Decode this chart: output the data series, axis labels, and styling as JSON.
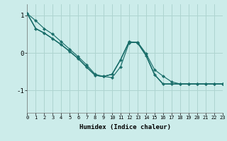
{
  "xlabel": "Humidex (Indice chaleur)",
  "xlim": [
    0,
    23
  ],
  "ylim": [
    -1.6,
    1.3
  ],
  "yticks": [
    -1,
    0,
    1
  ],
  "xticks": [
    0,
    1,
    2,
    3,
    4,
    5,
    6,
    7,
    8,
    9,
    10,
    11,
    12,
    13,
    14,
    15,
    16,
    17,
    18,
    19,
    20,
    21,
    22,
    23
  ],
  "background_color": "#ccecea",
  "grid_color": "#aed4d0",
  "line_color": "#1a6e6a",
  "marker": "D",
  "marker_size": 2.2,
  "line_width": 0.85,
  "series": [
    {
      "y": [
        1.05,
        0.86,
        0.65,
        0.5,
        0.3,
        0.1,
        -0.1,
        -0.32,
        -0.57,
        -0.63,
        -0.66,
        -0.37,
        0.27,
        0.29,
        -0.02,
        -0.45,
        -0.62,
        -0.77,
        -0.83,
        -0.83,
        -0.83,
        -0.83,
        -0.83,
        -0.83
      ],
      "markers": true
    },
    {
      "y": [
        1.05,
        0.65,
        0.53,
        0.38,
        0.22,
        0.04,
        -0.15,
        -0.38,
        -0.6,
        -0.63,
        -0.57,
        -0.18,
        0.3,
        0.27,
        -0.07,
        -0.58,
        -0.83,
        -0.83,
        -0.83,
        -0.83,
        -0.83,
        -0.83,
        -0.83,
        -0.83
      ],
      "markers": true
    },
    {
      "y": [
        1.05,
        0.65,
        0.53,
        0.38,
        0.22,
        0.04,
        -0.15,
        -0.38,
        -0.6,
        -0.63,
        -0.57,
        -0.18,
        0.3,
        0.27,
        -0.07,
        -0.58,
        -0.83,
        -0.83,
        -0.83,
        -0.83,
        -0.83,
        -0.83,
        -0.83,
        -0.83
      ],
      "markers": false
    },
    {
      "y": [
        1.05,
        0.65,
        0.53,
        0.38,
        0.22,
        0.04,
        -0.15,
        -0.38,
        -0.6,
        -0.63,
        -0.57,
        -0.18,
        0.3,
        0.27,
        -0.07,
        -0.58,
        -0.83,
        -0.83,
        -0.83,
        -0.83,
        -0.83,
        -0.83,
        -0.83,
        -0.83
      ],
      "markers": false
    }
  ],
  "figsize": [
    3.2,
    2.0
  ],
  "dpi": 100
}
